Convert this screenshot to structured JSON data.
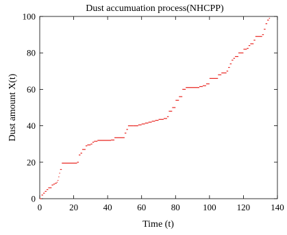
{
  "chart_data": {
    "type": "line",
    "title": "Dust accumuation process(NHCPP)",
    "xlabel": "Time (t)",
    "ylabel": "Dust amount X(t)",
    "xlim": [
      0,
      140
    ],
    "ylim": [
      0,
      100
    ],
    "xticks": [
      "0",
      "20",
      "40",
      "60",
      "80",
      "100",
      "120",
      "140"
    ],
    "yticks": [
      "0",
      "20",
      "40",
      "60",
      "80",
      "100"
    ],
    "grid": false,
    "legend": false,
    "series": [
      {
        "color": "#e8231e",
        "style": "step",
        "x": [
          0,
          1,
          2,
          3,
          4,
          5,
          7,
          8,
          9,
          10,
          10.5,
          11,
          11.5,
          12,
          13,
          22,
          23,
          24,
          25,
          27,
          28,
          30,
          31,
          32,
          33,
          34,
          42,
          44,
          50,
          51,
          52,
          55,
          58,
          60,
          62,
          64,
          66,
          68,
          70,
          73,
          75,
          76,
          78,
          80,
          82,
          84,
          86,
          94,
          96,
          98,
          100,
          105,
          107,
          110,
          111,
          112,
          113,
          114,
          115,
          117,
          120,
          122,
          123,
          124,
          126,
          127,
          131,
          132,
          133,
          134,
          135
        ],
        "y": [
          0,
          2,
          3,
          4,
          5,
          6,
          7.5,
          8,
          8.5,
          9,
          10,
          12,
          14,
          16,
          19.5,
          20,
          24,
          25,
          27,
          29,
          29.5,
          30,
          31,
          31.5,
          31.5,
          32,
          32.2,
          33.5,
          36,
          38,
          40,
          40,
          40.5,
          41,
          41.5,
          42,
          42.5,
          43,
          43.5,
          44,
          45,
          48,
          50,
          54,
          56,
          60,
          61,
          61.5,
          62,
          63,
          66,
          68,
          69,
          70,
          72,
          74,
          76,
          77,
          78,
          80,
          82,
          82.5,
          84,
          85,
          87,
          89,
          90,
          93,
          96,
          98,
          99
        ]
      }
    ]
  }
}
